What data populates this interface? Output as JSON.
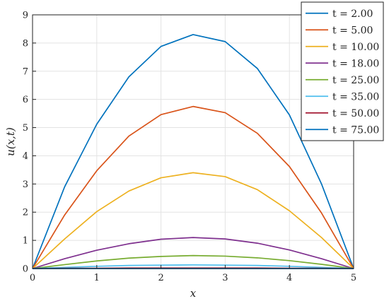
{
  "chart_data": {
    "type": "line",
    "xlabel": "x",
    "ylabel": "u(x,t)",
    "xlim": [
      0,
      5
    ],
    "ylim": [
      0,
      9
    ],
    "xticks": [
      0,
      1,
      2,
      3,
      4,
      5
    ],
    "yticks": [
      0,
      1,
      2,
      3,
      4,
      5,
      6,
      7,
      8,
      9
    ],
    "grid": true,
    "legend_position": "top-right",
    "x": [
      0,
      0.5,
      1,
      1.5,
      2,
      2.5,
      3,
      3.5,
      4,
      4.5,
      5
    ],
    "series": [
      {
        "name": "t = 2.00",
        "color": "#0072BD",
        "values": [
          0,
          2.9,
          5.12,
          6.8,
          7.88,
          8.3,
          8.05,
          7.1,
          5.45,
          3.0,
          0
        ]
      },
      {
        "name": "t = 5.00",
        "color": "#D95319",
        "values": [
          0,
          1.9,
          3.47,
          4.7,
          5.46,
          5.75,
          5.53,
          4.8,
          3.62,
          1.97,
          0
        ]
      },
      {
        "name": "t = 10.00",
        "color": "#EDB120",
        "values": [
          0,
          1.05,
          2.02,
          2.75,
          3.22,
          3.4,
          3.26,
          2.8,
          2.05,
          1.1,
          0
        ]
      },
      {
        "name": "t = 18.00",
        "color": "#7E2F8E",
        "values": [
          0,
          0.35,
          0.65,
          0.88,
          1.04,
          1.1,
          1.05,
          0.9,
          0.66,
          0.35,
          0
        ]
      },
      {
        "name": "t = 25.00",
        "color": "#77AC30",
        "values": [
          0,
          0.14,
          0.27,
          0.37,
          0.43,
          0.46,
          0.44,
          0.38,
          0.28,
          0.15,
          0
        ]
      },
      {
        "name": "t = 35.00",
        "color": "#4DBEEE",
        "values": [
          0,
          0.04,
          0.08,
          0.11,
          0.12,
          0.13,
          0.12,
          0.11,
          0.08,
          0.04,
          0
        ]
      },
      {
        "name": "t = 50.00",
        "color": "#A2142F",
        "values": [
          0,
          0.01,
          0.01,
          0.02,
          0.02,
          0.02,
          0.02,
          0.02,
          0.01,
          0.01,
          0
        ]
      },
      {
        "name": "t = 75.00",
        "color": "#0072BD",
        "values": [
          0,
          0,
          0,
          0,
          0,
          0,
          0,
          0,
          0,
          0,
          0
        ]
      }
    ]
  }
}
